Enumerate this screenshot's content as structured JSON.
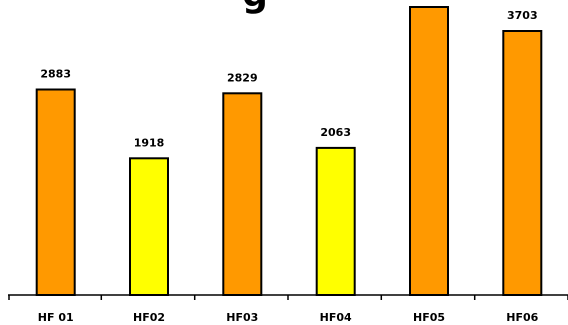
{
  "chart_data": {
    "type": "bar",
    "title": "g",
    "categories": [
      "HF 01",
      "HF02",
      "HF03",
      "HF04",
      "HF05",
      "HF06"
    ],
    "values": [
      2883,
      1918,
      2829,
      2063,
      4040,
      3703
    ],
    "data_labels": [
      "2883",
      "1918",
      "2829",
      "2063",
      "",
      "3703"
    ],
    "xlabel": "",
    "ylabel": "",
    "ylim": [
      0,
      4100
    ],
    "grid": false,
    "legend": "none",
    "colors": [
      "#FF9900",
      "#FFFF00",
      "#FF9900",
      "#FFFF00",
      "#FF9900",
      "#FF9900"
    ],
    "stroke_color": "#000000"
  }
}
